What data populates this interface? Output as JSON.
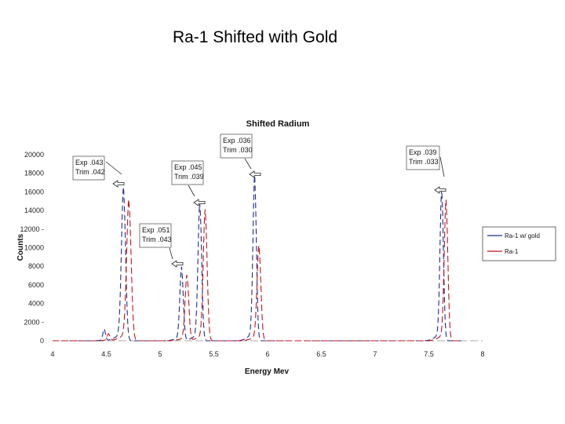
{
  "slide": {
    "title": "Ra-1 Shifted with Gold"
  },
  "chart_data": {
    "type": "line",
    "title": "Shifted Radium",
    "xlabel": "Energy Mev",
    "ylabel": "Counts",
    "xlim": [
      4,
      8
    ],
    "ylim": [
      0,
      20000
    ],
    "x_ticks": [
      "4",
      "4.5",
      "5",
      "5.5",
      "6",
      "6.5",
      "7",
      "7.5",
      "8"
    ],
    "y_ticks": [
      "0",
      "2000 -",
      "4000",
      "6000",
      "8000",
      "10000",
      "12000 -",
      "14000",
      "16000",
      "18000",
      "20000"
    ],
    "y_tick_values": [
      0,
      2000,
      4000,
      6000,
      8000,
      10000,
      12000,
      14000,
      16000,
      18000,
      20000
    ],
    "x_tick_values": [
      4,
      4.5,
      5,
      5.5,
      6,
      6.5,
      7,
      7.5,
      8
    ],
    "legend_position": "right",
    "series": [
      {
        "name": "Ra-1 w/ gold",
        "color": "#1f2a8c",
        "dash": "7,4",
        "baseline": 0,
        "peaks": [
          {
            "x": 4.48,
            "y": 1200,
            "w": 0.012
          },
          {
            "x": 4.66,
            "y": 15800,
            "w": 0.019
          },
          {
            "x": 5.2,
            "y": 7600,
            "w": 0.016
          },
          {
            "x": 5.37,
            "y": 14300,
            "w": 0.017
          },
          {
            "x": 5.88,
            "y": 17000,
            "w": 0.016
          },
          {
            "x": 7.62,
            "y": 15600,
            "w": 0.016
          }
        ]
      },
      {
        "name": "Ra-1",
        "color": "#c0151b",
        "dash": "8,4",
        "baseline": 0,
        "peaks": [
          {
            "x": 4.52,
            "y": 700,
            "w": 0.014
          },
          {
            "x": 4.71,
            "y": 14600,
            "w": 0.021
          },
          {
            "x": 5.25,
            "y": 6800,
            "w": 0.017
          },
          {
            "x": 5.42,
            "y": 13500,
            "w": 0.018
          },
          {
            "x": 5.92,
            "y": 9800,
            "w": 0.018
          },
          {
            "x": 7.66,
            "y": 14500,
            "w": 0.017
          }
        ]
      }
    ],
    "annotations": [
      {
        "lines": [
          "Exp .043",
          "Trim .042"
        ]
      },
      {
        "lines": [
          "Exp .045",
          "Trim .039"
        ]
      },
      {
        "lines": [
          "Exp .036",
          "Trim .030"
        ]
      },
      {
        "lines": [
          "Exp .051",
          "Trim .043"
        ]
      },
      {
        "lines": [
          "Exp .039",
          "Trim .033"
        ]
      }
    ]
  }
}
